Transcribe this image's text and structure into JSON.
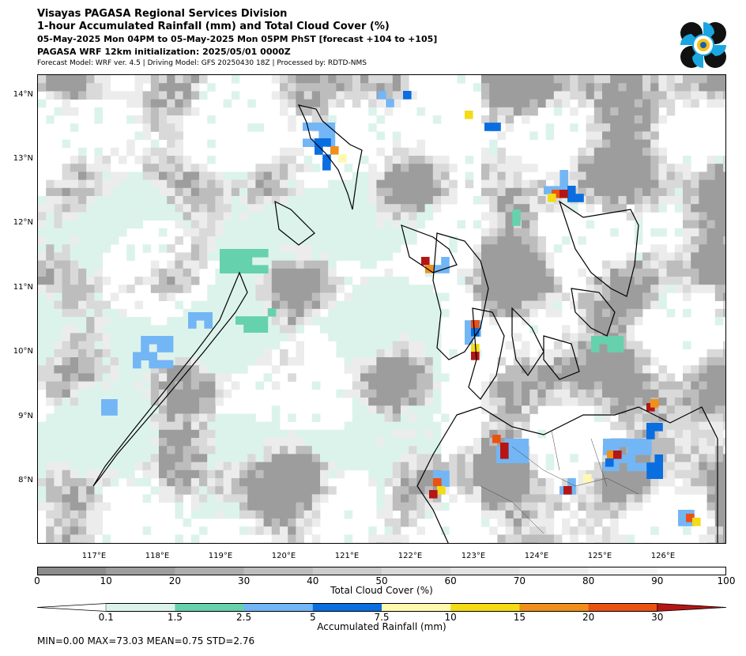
{
  "header": {
    "line1": "Visayas PAGASA Regional Services Division",
    "line2": "1-hour Accumulated Rainfall (mm) and Total Cloud Cover (%)",
    "line3": "05-May-2025 Mon 04PM to 05-May-2025 Mon 05PM PhST [forecast +104 to +105]",
    "line4": "PAGASA WRF 12km initialization: 2025/05/01 0000Z",
    "line5": "Forecast Model: WRF ver. 4.5 | Driving Model: GFS 20250430 18Z | Processed by: RDTD-NMS"
  },
  "logo": {
    "name": "pagasa-logo-icon"
  },
  "map": {
    "lat_labels": [
      "14°N",
      "13°N",
      "12°N",
      "11°N",
      "10°N",
      "9°N",
      "8°N"
    ],
    "lon_labels": [
      "117°E",
      "118°E",
      "119°E",
      "120°E",
      "121°E",
      "122°E",
      "123°E",
      "124°E",
      "125°E",
      "126°E"
    ]
  },
  "cloud_colorbar": {
    "label": "Total Cloud Cover (%)",
    "ticks": [
      "0",
      "10",
      "20",
      "30",
      "40",
      "50",
      "60",
      "70",
      "80",
      "90",
      "100"
    ],
    "colors": [
      "#8c8c8c",
      "#9d9d9d",
      "#adadad",
      "#bdbdbd",
      "#cccccc",
      "#d9d9d9",
      "#e3e3e3",
      "#ececec",
      "#f5f5f5",
      "#ffffff"
    ]
  },
  "rain_colorbar": {
    "label": "Accumulated Rainfall (mm)",
    "ticks": [
      "0.1",
      "1.5",
      "2.5",
      "5",
      "7.5",
      "10",
      "15",
      "20",
      "30"
    ],
    "colors": [
      "#ffffff",
      "#dcf3ec",
      "#66d1ad",
      "#73b6f6",
      "#0a6ee0",
      "#fff9b0",
      "#f3db16",
      "#f0901a",
      "#ea5212",
      "#b51515"
    ]
  },
  "stats": "MIN=0.00   MAX=73.03   MEAN=0.75   STD=2.76",
  "chart_data": {
    "type": "heatmap",
    "title": "1-hour Accumulated Rainfall (mm) and Total Cloud Cover (%)",
    "x_range": [
      116.2,
      127.0
    ],
    "y_range": [
      7.0,
      14.3
    ],
    "xlabel": "",
    "ylabel": "",
    "cloud_cover_levels": [
      0,
      10,
      20,
      30,
      40,
      50,
      60,
      70,
      80,
      90,
      100
    ],
    "rainfall_levels": [
      0.1,
      1.5,
      2.5,
      5,
      7.5,
      10,
      15,
      20,
      30
    ],
    "rainfall_stats": {
      "min": 0.0,
      "max": 73.03,
      "mean": 0.75,
      "std": 2.76
    }
  }
}
